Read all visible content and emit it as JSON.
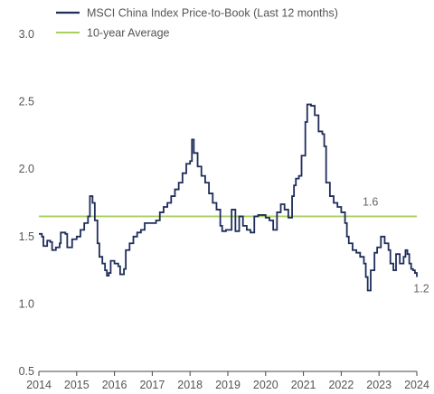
{
  "chart_data": {
    "type": "line",
    "title": "",
    "xlabel": "",
    "ylabel": "",
    "ylim": [
      0.5,
      3.0
    ],
    "xlim": [
      2014,
      2024
    ],
    "y_ticks": [
      "0.5",
      "1.0",
      "1.5",
      "2.0",
      "2.5",
      "3.0"
    ],
    "x_ticks": [
      "2014",
      "2015",
      "2016",
      "2017",
      "2018",
      "2019",
      "2020",
      "2021",
      "2022",
      "2023",
      "2024"
    ],
    "grid": false,
    "legend_position": "top-left",
    "series": [
      {
        "name": "MSCI China Index Price-to-Book (Last 12 months)",
        "color": "#1f2d5a",
        "points": [
          [
            2014.0,
            1.52
          ],
          [
            2014.08,
            1.5
          ],
          [
            2014.12,
            1.43
          ],
          [
            2014.2,
            1.43
          ],
          [
            2014.22,
            1.47
          ],
          [
            2014.3,
            1.46
          ],
          [
            2014.35,
            1.4
          ],
          [
            2014.45,
            1.42
          ],
          [
            2014.55,
            1.45
          ],
          [
            2014.58,
            1.53
          ],
          [
            2014.7,
            1.52
          ],
          [
            2014.75,
            1.42
          ],
          [
            2014.88,
            1.48
          ],
          [
            2015.0,
            1.5
          ],
          [
            2015.1,
            1.55
          ],
          [
            2015.2,
            1.6
          ],
          [
            2015.3,
            1.65
          ],
          [
            2015.35,
            1.8
          ],
          [
            2015.42,
            1.75
          ],
          [
            2015.48,
            1.62
          ],
          [
            2015.55,
            1.45
          ],
          [
            2015.6,
            1.35
          ],
          [
            2015.68,
            1.3
          ],
          [
            2015.75,
            1.25
          ],
          [
            2015.8,
            1.21
          ],
          [
            2015.85,
            1.23
          ],
          [
            2015.9,
            1.32
          ],
          [
            2016.0,
            1.3
          ],
          [
            2016.1,
            1.28
          ],
          [
            2016.15,
            1.22
          ],
          [
            2016.25,
            1.26
          ],
          [
            2016.3,
            1.4
          ],
          [
            2016.4,
            1.45
          ],
          [
            2016.5,
            1.5
          ],
          [
            2016.6,
            1.53
          ],
          [
            2016.7,
            1.55
          ],
          [
            2016.8,
            1.6
          ],
          [
            2017.0,
            1.6
          ],
          [
            2017.1,
            1.62
          ],
          [
            2017.2,
            1.68
          ],
          [
            2017.3,
            1.72
          ],
          [
            2017.4,
            1.75
          ],
          [
            2017.5,
            1.8
          ],
          [
            2017.6,
            1.85
          ],
          [
            2017.7,
            1.9
          ],
          [
            2017.8,
            1.97
          ],
          [
            2017.9,
            2.04
          ],
          [
            2018.0,
            2.06
          ],
          [
            2018.05,
            2.22
          ],
          [
            2018.1,
            2.12
          ],
          [
            2018.2,
            2.02
          ],
          [
            2018.3,
            1.95
          ],
          [
            2018.4,
            1.9
          ],
          [
            2018.5,
            1.82
          ],
          [
            2018.6,
            1.75
          ],
          [
            2018.7,
            1.7
          ],
          [
            2018.8,
            1.58
          ],
          [
            2018.85,
            1.54
          ],
          [
            2018.95,
            1.55
          ],
          [
            2019.1,
            1.7
          ],
          [
            2019.2,
            1.54
          ],
          [
            2019.3,
            1.65
          ],
          [
            2019.4,
            1.58
          ],
          [
            2019.5,
            1.55
          ],
          [
            2019.6,
            1.53
          ],
          [
            2019.7,
            1.65
          ],
          [
            2019.8,
            1.66
          ],
          [
            2020.0,
            1.64
          ],
          [
            2020.1,
            1.62
          ],
          [
            2020.2,
            1.55
          ],
          [
            2020.3,
            1.68
          ],
          [
            2020.4,
            1.74
          ],
          [
            2020.5,
            1.7
          ],
          [
            2020.6,
            1.64
          ],
          [
            2020.7,
            1.8
          ],
          [
            2020.75,
            1.88
          ],
          [
            2020.8,
            1.93
          ],
          [
            2020.88,
            1.95
          ],
          [
            2020.95,
            2.1
          ],
          [
            2021.05,
            2.35
          ],
          [
            2021.1,
            2.48
          ],
          [
            2021.2,
            2.47
          ],
          [
            2021.3,
            2.4
          ],
          [
            2021.4,
            2.28
          ],
          [
            2021.5,
            2.26
          ],
          [
            2021.55,
            2.17
          ],
          [
            2021.6,
            1.9
          ],
          [
            2021.7,
            1.8
          ],
          [
            2021.8,
            1.75
          ],
          [
            2021.9,
            1.72
          ],
          [
            2022.0,
            1.68
          ],
          [
            2022.1,
            1.6
          ],
          [
            2022.15,
            1.5
          ],
          [
            2022.2,
            1.45
          ],
          [
            2022.3,
            1.4
          ],
          [
            2022.4,
            1.38
          ],
          [
            2022.5,
            1.35
          ],
          [
            2022.6,
            1.3
          ],
          [
            2022.65,
            1.2
          ],
          [
            2022.7,
            1.1
          ],
          [
            2022.78,
            1.25
          ],
          [
            2022.88,
            1.38
          ],
          [
            2022.95,
            1.42
          ],
          [
            2023.05,
            1.5
          ],
          [
            2023.15,
            1.45
          ],
          [
            2023.25,
            1.4
          ],
          [
            2023.3,
            1.3
          ],
          [
            2023.38,
            1.25
          ],
          [
            2023.45,
            1.37
          ],
          [
            2023.55,
            1.3
          ],
          [
            2023.65,
            1.35
          ],
          [
            2023.7,
            1.4
          ],
          [
            2023.75,
            1.37
          ],
          [
            2023.8,
            1.3
          ],
          [
            2023.85,
            1.26
          ],
          [
            2023.9,
            1.25
          ],
          [
            2023.95,
            1.23
          ],
          [
            2024.0,
            1.2
          ]
        ]
      },
      {
        "name": "10-year Average",
        "color": "#a9cf5f",
        "value": 1.65
      }
    ],
    "annotations": [
      {
        "text": "1.6",
        "x": 2022.15,
        "y": 1.65
      },
      {
        "text": "1.2",
        "x": 2024.0,
        "y": 1.2
      }
    ]
  }
}
